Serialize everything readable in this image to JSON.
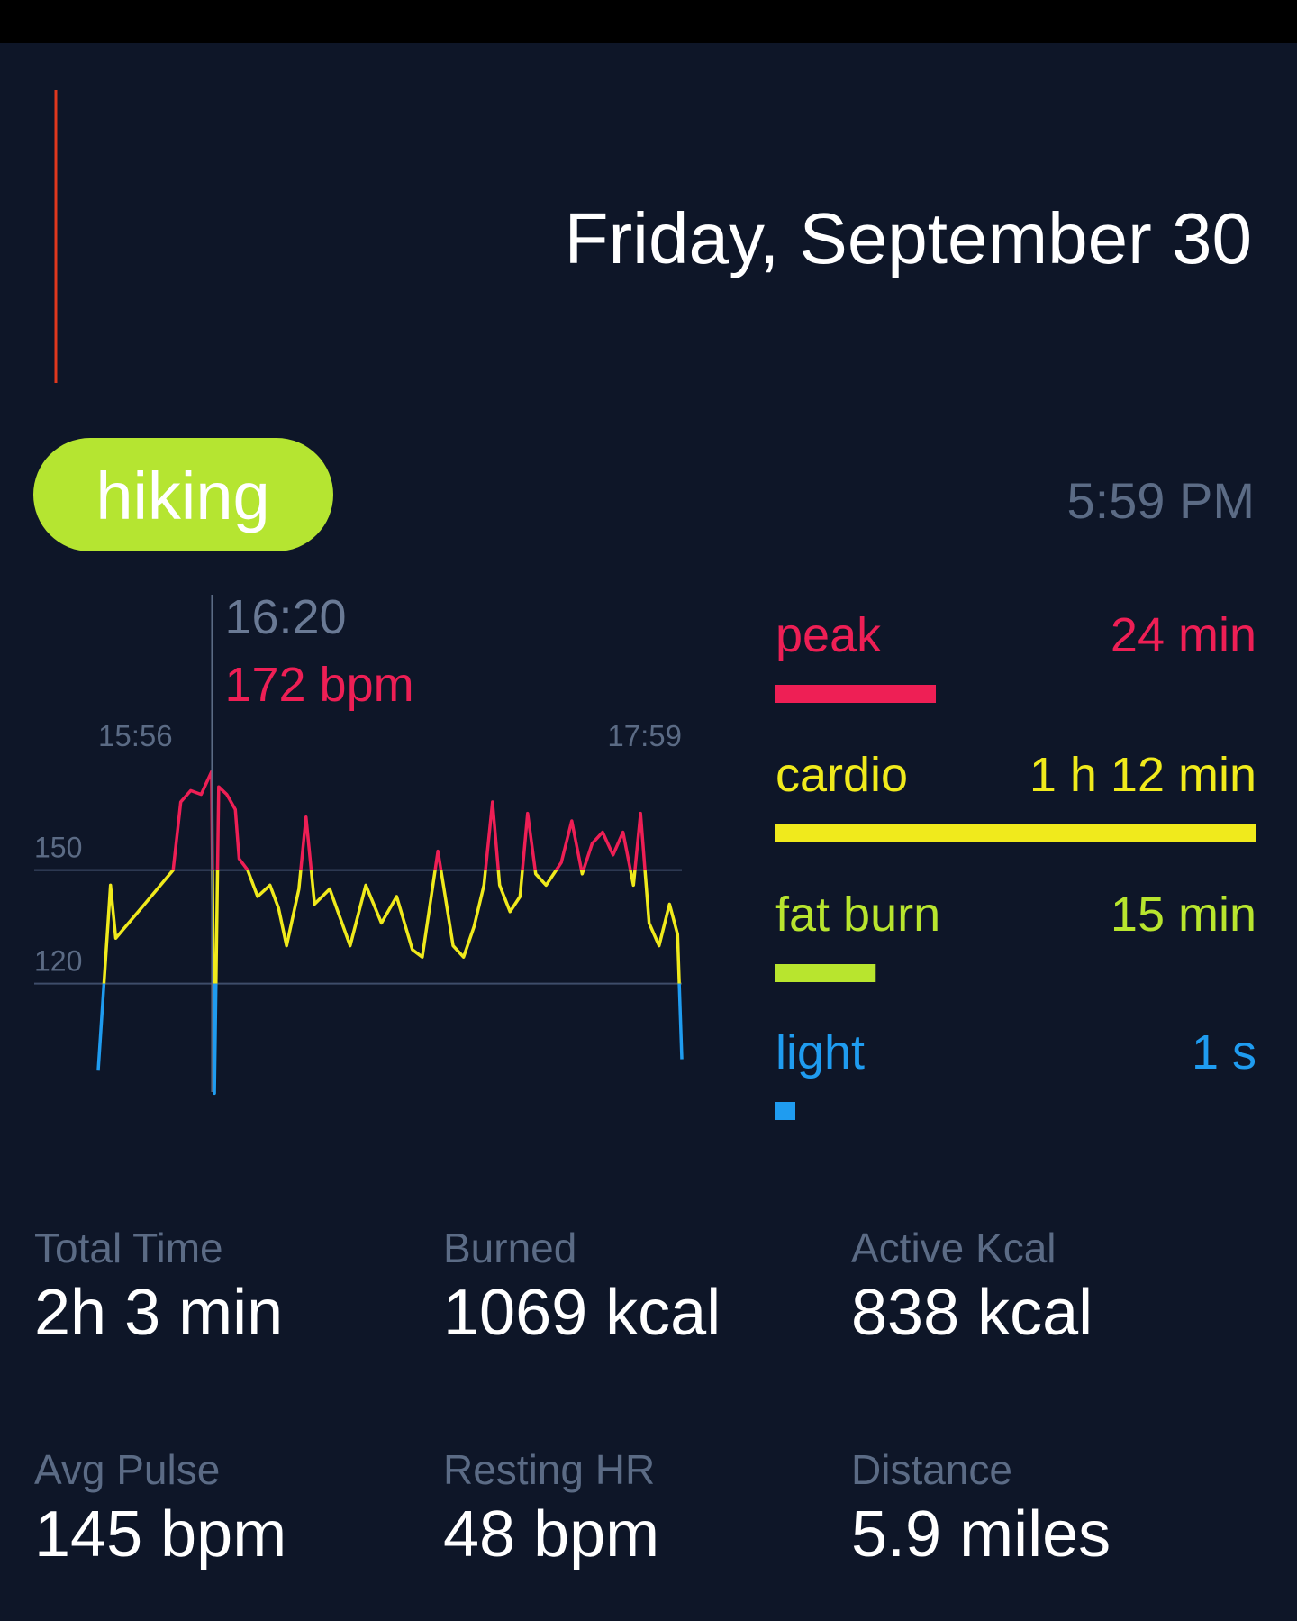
{
  "header": {
    "date": "Friday, September 30"
  },
  "activity": {
    "label": "hiking",
    "time": "5:59 PM"
  },
  "chart_data": {
    "type": "line",
    "x": [
      0,
      2.6,
      3.7,
      9.8,
      15.8,
      17.4,
      19.5,
      21.7,
      23.9,
      24.5,
      25.4,
      27.1,
      28.9,
      29.7,
      31.5,
      33.6,
      36.2,
      38,
      39.7,
      42.3,
      43.8,
      45.6,
      48.8,
      53.1,
      56.4,
      59.7,
      62.9,
      66.2,
      68.3,
      71.6,
      74.8,
      77,
      79.2,
      81.3,
      83.1,
      84.6,
      86.8,
      88.9,
      90.5,
      92.2,
      94.4,
      97.6,
      99.8,
      102,
      104.1,
      106.3,
      108.5,
      110.6,
      112.8,
      114.3,
      116.1,
      118.2,
      120.4,
      122.1,
      123
    ],
    "series": [
      {
        "values": [
          97,
          146,
          132,
          141,
          150,
          168,
          171,
          170,
          176,
          91,
          172,
          170,
          166,
          153,
          150,
          143,
          146,
          140,
          130,
          145,
          164,
          141,
          145,
          130,
          146,
          136,
          143,
          129,
          127,
          155,
          130,
          127,
          135,
          146,
          168,
          146,
          139,
          143,
          165,
          149,
          146,
          152,
          163,
          149,
          157,
          160,
          154,
          160,
          146,
          165,
          136,
          130,
          141,
          133,
          100
        ]
      }
    ],
    "xlim": [
      0,
      123
    ],
    "xticks": [
      {
        "value": 0,
        "label": "15:56"
      },
      {
        "value": 123,
        "label": "17:59"
      }
    ],
    "ylim": [
      88,
      178
    ],
    "yticks": [
      150,
      120
    ],
    "grid": true,
    "cursor": {
      "x": {
        "value": 24,
        "label": "16:20"
      },
      "value": 172,
      "value_label": "172 bpm"
    },
    "zones": [
      {
        "name": "peak",
        "color": "#ee1f55",
        "value": 24,
        "value_label": "24 min"
      },
      {
        "name": "cardio",
        "color": "#f0ea1c",
        "value": 72,
        "value_label": "1 h 12 min"
      },
      {
        "name": "fat burn",
        "color": "#b8e52e",
        "value": 15,
        "value_label": "15 min"
      },
      {
        "name": "light",
        "color": "#1f9cf0",
        "value": 0.0167,
        "value_label": "1 s"
      }
    ]
  },
  "stats": [
    {
      "label": "Total Time",
      "value": "2h 3 min"
    },
    {
      "label": "Burned",
      "value": "1069 kcal"
    },
    {
      "label": "Active Kcal",
      "value": "838 kcal"
    },
    {
      "label": "Avg Pulse",
      "value": "145 bpm"
    },
    {
      "label": "Resting HR",
      "value": "48 bpm"
    },
    {
      "label": "Distance",
      "value": "5.9 miles"
    }
  ]
}
